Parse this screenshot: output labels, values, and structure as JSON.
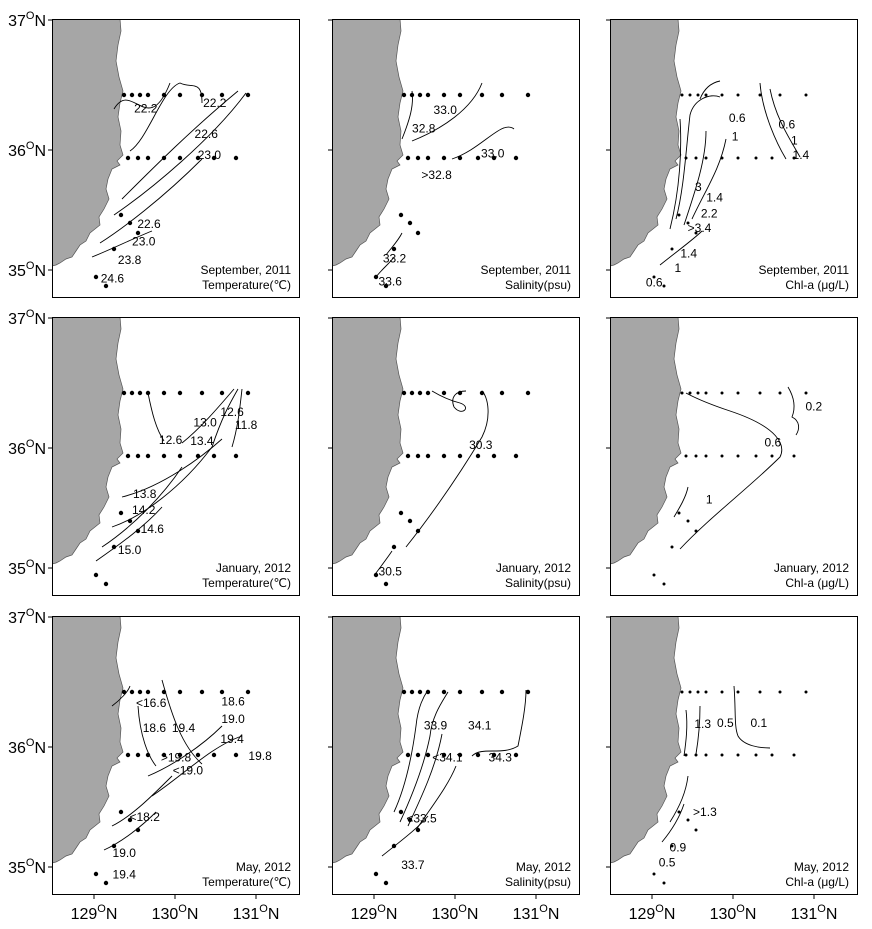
{
  "figure": {
    "lat_labels": [
      "37ON",
      "36ON",
      "35ON"
    ],
    "lon_labels": [
      "129ON",
      "130ON",
      "131ON"
    ],
    "colors": {
      "land": "#a6a6a6",
      "ink": "#000000",
      "background": "#ffffff"
    }
  },
  "chart_data": [
    {
      "type": "scatter",
      "panel": "sep-2011-temperature",
      "caption": [
        "September, 2011",
        "Temperature(℃)"
      ],
      "xlim": [
        128.7,
        131.0
      ],
      "ylim": [
        34.9,
        37.0
      ],
      "grid": false,
      "contour_labels": [
        {
          "text": "22.2",
          "lon": 129.57,
          "lat": 36.32
        },
        {
          "text": "22.2",
          "lon": 130.21,
          "lat": 36.36
        },
        {
          "text": "22.6",
          "lon": 130.13,
          "lat": 36.13
        },
        {
          "text": "23.0",
          "lon": 130.16,
          "lat": 35.97
        },
        {
          "text": "22.6",
          "lon": 129.6,
          "lat": 35.45
        },
        {
          "text": "23.0",
          "lon": 129.55,
          "lat": 35.32
        },
        {
          "text": "23.8",
          "lon": 129.42,
          "lat": 35.18
        },
        {
          "text": "24.6",
          "lon": 129.26,
          "lat": 35.04
        }
      ]
    },
    {
      "type": "scatter",
      "panel": "sep-2011-salinity",
      "caption": [
        "September, 2011",
        "Salinity(psu)"
      ],
      "xlim": [
        128.7,
        131.0
      ],
      "ylim": [
        34.9,
        37.0
      ],
      "grid": false,
      "contour_labels": [
        {
          "text": "33.0",
          "lon": 129.75,
          "lat": 36.31
        },
        {
          "text": "32.8",
          "lon": 129.55,
          "lat": 36.17
        },
        {
          "text": "33.0",
          "lon": 130.19,
          "lat": 35.98
        },
        {
          "text": ">32.8",
          "lon": 129.67,
          "lat": 35.82
        },
        {
          "text": "33.2",
          "lon": 129.28,
          "lat": 35.19
        },
        {
          "text": "33.6",
          "lon": 129.24,
          "lat": 35.02
        }
      ]
    },
    {
      "type": "scatter",
      "panel": "sep-2011-chl-a",
      "caption": [
        "September, 2011",
        "Chl-a (μg/L)"
      ],
      "xlim": [
        128.7,
        131.0
      ],
      "ylim": [
        34.9,
        37.0
      ],
      "grid": false,
      "contour_labels": [
        {
          "text": "0.6",
          "lon": 129.88,
          "lat": 36.25
        },
        {
          "text": "0.6",
          "lon": 130.34,
          "lat": 36.2
        },
        {
          "text": "1",
          "lon": 130.41,
          "lat": 36.08
        },
        {
          "text": "1",
          "lon": 129.86,
          "lat": 36.11
        },
        {
          "text": "1.4",
          "lon": 130.47,
          "lat": 35.97
        },
        {
          "text": "3",
          "lon": 129.52,
          "lat": 35.73
        },
        {
          "text": "1.4",
          "lon": 129.67,
          "lat": 35.65
        },
        {
          "text": "2.2",
          "lon": 129.62,
          "lat": 35.53
        },
        {
          "text": ">3.4",
          "lon": 129.53,
          "lat": 35.42
        },
        {
          "text": "1.4",
          "lon": 129.43,
          "lat": 35.23
        },
        {
          "text": "1",
          "lon": 129.33,
          "lat": 35.12
        },
        {
          "text": "0.6",
          "lon": 129.11,
          "lat": 35.01
        }
      ]
    },
    {
      "type": "scatter",
      "panel": "jan-2012-temperature",
      "caption": [
        "January, 2012",
        "Temperature(℃)"
      ],
      "xlim": [
        128.7,
        131.0
      ],
      "ylim": [
        34.9,
        37.0
      ],
      "grid": false,
      "contour_labels": [
        {
          "text": "12.6",
          "lon": 130.37,
          "lat": 36.28
        },
        {
          "text": "13.0",
          "lon": 130.12,
          "lat": 36.2
        },
        {
          "text": "11.8",
          "lon": 130.5,
          "lat": 36.18
        },
        {
          "text": "12.6",
          "lon": 129.8,
          "lat": 36.07
        },
        {
          "text": "13.4",
          "lon": 130.09,
          "lat": 36.06
        },
        {
          "text": "13.8",
          "lon": 129.56,
          "lat": 35.66
        },
        {
          "text": "14.2",
          "lon": 129.55,
          "lat": 35.54
        },
        {
          "text": "14.6",
          "lon": 129.63,
          "lat": 35.4
        },
        {
          "text": "15.0",
          "lon": 129.42,
          "lat": 35.24
        }
      ]
    },
    {
      "type": "scatter",
      "panel": "jan-2012-salinity",
      "caption": [
        "January, 2012",
        "Salinity(psu)"
      ],
      "xlim": [
        128.7,
        131.0
      ],
      "ylim": [
        34.9,
        37.0
      ],
      "grid": false,
      "contour_labels": [
        {
          "text": "30.3",
          "lon": 130.08,
          "lat": 36.03
        },
        {
          "text": "30.5",
          "lon": 129.24,
          "lat": 35.08
        }
      ]
    },
    {
      "type": "scatter",
      "panel": "jan-2012-chl-a",
      "caption": [
        "January, 2012",
        "Chl-a (μg/L)"
      ],
      "xlim": [
        128.7,
        131.0
      ],
      "ylim": [
        34.9,
        37.0
      ],
      "grid": false,
      "contour_labels": [
        {
          "text": "0.2",
          "lon": 130.59,
          "lat": 36.32
        },
        {
          "text": "0.6",
          "lon": 130.21,
          "lat": 36.05
        },
        {
          "text": "1",
          "lon": 129.62,
          "lat": 35.62
        }
      ]
    },
    {
      "type": "scatter",
      "panel": "may-2012-temperature",
      "caption": [
        "May, 2012",
        "Temperature(℃)"
      ],
      "xlim": [
        128.7,
        131.0
      ],
      "ylim": [
        34.9,
        37.0
      ],
      "grid": false,
      "contour_labels": [
        {
          "text": "<16.6",
          "lon": 129.62,
          "lat": 36.34
        },
        {
          "text": "18.6",
          "lon": 130.38,
          "lat": 36.35
        },
        {
          "text": "19.0",
          "lon": 130.38,
          "lat": 36.22
        },
        {
          "text": "18.6",
          "lon": 129.65,
          "lat": 36.15
        },
        {
          "text": "19.4",
          "lon": 129.92,
          "lat": 36.15
        },
        {
          "text": "19.4",
          "lon": 130.37,
          "lat": 36.07
        },
        {
          "text": ">19.8",
          "lon": 129.85,
          "lat": 35.93
        },
        {
          "text": "19.8",
          "lon": 130.63,
          "lat": 35.94
        },
        {
          "text": "<19.0",
          "lon": 129.96,
          "lat": 35.83
        },
        {
          "text": "<18.2",
          "lon": 129.56,
          "lat": 35.48
        },
        {
          "text": "19.0",
          "lon": 129.37,
          "lat": 35.21
        },
        {
          "text": "19.4",
          "lon": 129.37,
          "lat": 35.05
        }
      ]
    },
    {
      "type": "scatter",
      "panel": "may-2012-salinity",
      "caption": [
        "May, 2012",
        "Salinity(psu)"
      ],
      "xlim": [
        128.7,
        131.0
      ],
      "ylim": [
        34.9,
        37.0
      ],
      "grid": false,
      "contour_labels": [
        {
          "text": "33.9",
          "lon": 129.66,
          "lat": 36.17
        },
        {
          "text": "34.1",
          "lon": 130.07,
          "lat": 36.17
        },
        {
          "text": "<34.1",
          "lon": 129.77,
          "lat": 35.93
        },
        {
          "text": "34.3",
          "lon": 130.26,
          "lat": 35.93
        },
        {
          "text": "<33.5",
          "lon": 129.53,
          "lat": 35.47
        },
        {
          "text": "33.7",
          "lon": 129.45,
          "lat": 35.12
        }
      ]
    },
    {
      "type": "scatter",
      "panel": "may-2012-chl-a",
      "caption": [
        "May, 2012",
        "Chl-a (μg/L)"
      ],
      "xlim": [
        128.7,
        131.0
      ],
      "ylim": [
        34.9,
        37.0
      ],
      "grid": false,
      "contour_labels": [
        {
          "text": "1.3",
          "lon": 129.56,
          "lat": 36.18
        },
        {
          "text": "0.5",
          "lon": 129.77,
          "lat": 36.19
        },
        {
          "text": "0.1",
          "lon": 130.08,
          "lat": 36.19
        },
        {
          "text": ">1.3",
          "lon": 129.58,
          "lat": 35.52
        },
        {
          "text": "0.9",
          "lon": 129.33,
          "lat": 35.25
        },
        {
          "text": "0.5",
          "lon": 129.23,
          "lat": 35.14
        }
      ]
    }
  ]
}
